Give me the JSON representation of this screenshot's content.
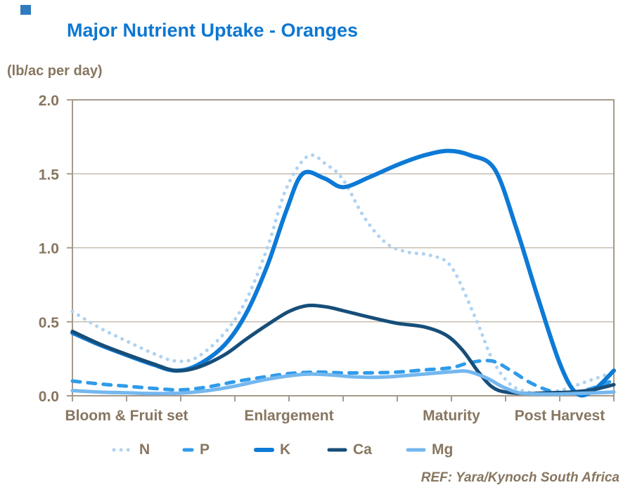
{
  "page": {
    "background_color": "#FFFFFF"
  },
  "decor": {
    "corner_square_color": "#2E7BBE"
  },
  "chart_data": {
    "type": "line",
    "title": "Major Nutrient Uptake - Oranges",
    "title_color": "#0D77D1",
    "unit_label": "(lb/ac per day)",
    "axis_text_color": "#877660",
    "axis_line_color": "#A59A8B",
    "grid_line_color": "#BCB1A3",
    "grid": "horizontal",
    "legend_position": "bottom",
    "ref_note": "REF: Yara/Kynoch South Africa",
    "x_axis": {
      "tick_positions": [
        0,
        1,
        2,
        3,
        4,
        5,
        6,
        7,
        8,
        9,
        10
      ],
      "categories": [
        {
          "label": "Bloom & Fruit set",
          "t": 1
        },
        {
          "label": "Enlargement",
          "t": 4
        },
        {
          "label": "Maturity",
          "t": 7
        },
        {
          "label": "Post Harvest",
          "t": 9
        }
      ]
    },
    "y_axis": {
      "min": 0,
      "max": 2,
      "ticks": [
        {
          "value": 0.0,
          "label": "0.0"
        },
        {
          "value": 0.5,
          "label": "0.5"
        },
        {
          "value": 1.0,
          "label": "1.0"
        },
        {
          "value": 1.5,
          "label": "1.5"
        },
        {
          "value": 2.0,
          "label": "2.0"
        }
      ]
    },
    "series": [
      {
        "name": "N",
        "color": "#AFD2F1",
        "style": "dotted",
        "width": 5,
        "points": [
          [
            0,
            0.57
          ],
          [
            0.5,
            0.46
          ],
          [
            1,
            0.37
          ],
          [
            1.5,
            0.285
          ],
          [
            1.9,
            0.235
          ],
          [
            2.3,
            0.26
          ],
          [
            2.8,
            0.42
          ],
          [
            3.2,
            0.64
          ],
          [
            3.6,
            1.0
          ],
          [
            3.95,
            1.4
          ],
          [
            4.35,
            1.62
          ],
          [
            4.7,
            1.56
          ],
          [
            5.0,
            1.46
          ],
          [
            5.4,
            1.2
          ],
          [
            5.8,
            1.03
          ],
          [
            6.2,
            0.97
          ],
          [
            6.6,
            0.95
          ],
          [
            7.0,
            0.87
          ],
          [
            7.45,
            0.52
          ],
          [
            7.75,
            0.25
          ],
          [
            8.05,
            0.09
          ],
          [
            8.35,
            0.03
          ],
          [
            8.7,
            0.02
          ],
          [
            9.05,
            0.04
          ],
          [
            9.45,
            0.09
          ],
          [
            10,
            0.16
          ]
        ]
      },
      {
        "name": "P",
        "color": "#2F9BEA",
        "style": "dashed",
        "width": 5,
        "points": [
          [
            0,
            0.1
          ],
          [
            0.5,
            0.08
          ],
          [
            1,
            0.065
          ],
          [
            1.5,
            0.05
          ],
          [
            2,
            0.04
          ],
          [
            2.5,
            0.06
          ],
          [
            3,
            0.095
          ],
          [
            3.5,
            0.125
          ],
          [
            4,
            0.15
          ],
          [
            4.5,
            0.16
          ],
          [
            5,
            0.155
          ],
          [
            5.5,
            0.155
          ],
          [
            6,
            0.16
          ],
          [
            6.5,
            0.175
          ],
          [
            7,
            0.19
          ],
          [
            7.35,
            0.225
          ],
          [
            7.75,
            0.235
          ],
          [
            8.1,
            0.17
          ],
          [
            8.45,
            0.09
          ],
          [
            8.8,
            0.035
          ],
          [
            9.1,
            0.02
          ],
          [
            9.5,
            0.04
          ],
          [
            10,
            0.105
          ]
        ]
      },
      {
        "name": "K",
        "color": "#0D7AD6",
        "style": "solid",
        "width": 6,
        "points": [
          [
            0,
            0.425
          ],
          [
            0.5,
            0.345
          ],
          [
            1,
            0.275
          ],
          [
            1.5,
            0.21
          ],
          [
            1.9,
            0.17
          ],
          [
            2.3,
            0.205
          ],
          [
            2.8,
            0.34
          ],
          [
            3.2,
            0.55
          ],
          [
            3.6,
            0.88
          ],
          [
            3.95,
            1.25
          ],
          [
            4.25,
            1.5
          ],
          [
            4.65,
            1.47
          ],
          [
            5.0,
            1.41
          ],
          [
            5.5,
            1.48
          ],
          [
            6.0,
            1.56
          ],
          [
            6.5,
            1.625
          ],
          [
            6.95,
            1.655
          ],
          [
            7.35,
            1.625
          ],
          [
            7.8,
            1.53
          ],
          [
            8.2,
            1.13
          ],
          [
            8.6,
            0.66
          ],
          [
            9.0,
            0.22
          ],
          [
            9.3,
            0.02
          ],
          [
            9.6,
            0.03
          ],
          [
            10,
            0.17
          ]
        ]
      },
      {
        "name": "Ca",
        "color": "#174E79",
        "style": "solid",
        "width": 5,
        "points": [
          [
            0,
            0.435
          ],
          [
            0.5,
            0.35
          ],
          [
            1,
            0.28
          ],
          [
            1.5,
            0.215
          ],
          [
            1.9,
            0.17
          ],
          [
            2.3,
            0.19
          ],
          [
            2.8,
            0.275
          ],
          [
            3.2,
            0.38
          ],
          [
            3.6,
            0.48
          ],
          [
            4.0,
            0.57
          ],
          [
            4.35,
            0.61
          ],
          [
            4.7,
            0.6
          ],
          [
            5.0,
            0.575
          ],
          [
            5.5,
            0.53
          ],
          [
            6.0,
            0.49
          ],
          [
            6.5,
            0.465
          ],
          [
            6.9,
            0.41
          ],
          [
            7.2,
            0.31
          ],
          [
            7.5,
            0.16
          ],
          [
            7.75,
            0.06
          ],
          [
            8.0,
            0.025
          ],
          [
            8.4,
            0.015
          ],
          [
            8.8,
            0.02
          ],
          [
            9.2,
            0.025
          ],
          [
            9.6,
            0.04
          ],
          [
            10,
            0.075
          ]
        ]
      },
      {
        "name": "Mg",
        "color": "#74B7EF",
        "style": "solid",
        "width": 5,
        "points": [
          [
            0,
            0.035
          ],
          [
            0.5,
            0.025
          ],
          [
            1,
            0.02
          ],
          [
            1.5,
            0.015
          ],
          [
            2,
            0.018
          ],
          [
            2.5,
            0.035
          ],
          [
            3,
            0.065
          ],
          [
            3.5,
            0.105
          ],
          [
            4,
            0.135
          ],
          [
            4.4,
            0.147
          ],
          [
            4.8,
            0.14
          ],
          [
            5.2,
            0.128
          ],
          [
            5.6,
            0.125
          ],
          [
            6,
            0.132
          ],
          [
            6.5,
            0.147
          ],
          [
            7,
            0.162
          ],
          [
            7.3,
            0.165
          ],
          [
            7.65,
            0.12
          ],
          [
            7.95,
            0.06
          ],
          [
            8.25,
            0.02
          ],
          [
            8.6,
            0.012
          ],
          [
            9,
            0.012
          ],
          [
            9.5,
            0.018
          ],
          [
            10,
            0.025
          ]
        ]
      }
    ]
  }
}
